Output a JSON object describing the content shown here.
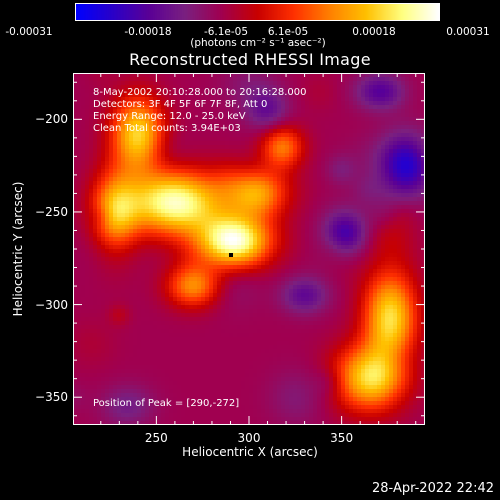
{
  "colorbar": {
    "ticks": [
      "-0.00031",
      "-0.00018",
      "-6.1e-05",
      "6.1e-05",
      "0.00018",
      "0.00031"
    ],
    "units": "(photons cm⁻² s⁻¹ asec⁻²)",
    "colors": [
      "#0000ff",
      "#2a00c8",
      "#5a0096",
      "#7a2080",
      "#a00050",
      "#c80000",
      "#ff3000",
      "#ff8000",
      "#ffc000",
      "#ffff80",
      "#ffffff"
    ]
  },
  "chart_data": {
    "type": "heatmap",
    "title": "Reconstructed RHESSI Image",
    "xlabel": "Heliocentric X (arcsec)",
    "ylabel": "Heliocentric Y (arcsec)",
    "xlim": [
      205,
      395
    ],
    "ylim": [
      -365,
      -175
    ],
    "xticks": [
      250,
      300,
      350
    ],
    "yticks": [
      -200,
      -250,
      -300,
      -350
    ],
    "value_range": [
      -0.00031,
      0.00031
    ],
    "peak": {
      "x": 290,
      "y": -272
    },
    "bright_sources": [
      {
        "x": 260,
        "y": -245,
        "intensity": 0.95,
        "sx": 18,
        "sy": 12
      },
      {
        "x": 292,
        "y": -266,
        "intensity": 1.0,
        "sx": 14,
        "sy": 10
      },
      {
        "x": 240,
        "y": -208,
        "intensity": 0.75,
        "sx": 10,
        "sy": 14
      },
      {
        "x": 228,
        "y": -252,
        "intensity": 0.65,
        "sx": 9,
        "sy": 16
      },
      {
        "x": 305,
        "y": -240,
        "intensity": 0.6,
        "sx": 12,
        "sy": 9
      },
      {
        "x": 376,
        "y": -308,
        "intensity": 0.75,
        "sx": 10,
        "sy": 20
      },
      {
        "x": 360,
        "y": -340,
        "intensity": 0.65,
        "sx": 12,
        "sy": 12
      },
      {
        "x": 270,
        "y": -290,
        "intensity": 0.55,
        "sx": 10,
        "sy": 8
      },
      {
        "x": 318,
        "y": -215,
        "intensity": 0.5,
        "sx": 8,
        "sy": 8
      }
    ],
    "dark_sources": [
      {
        "x": 385,
        "y": -225,
        "intensity": 0.85,
        "sx": 10,
        "sy": 12
      },
      {
        "x": 352,
        "y": -262,
        "intensity": 0.6,
        "sx": 8,
        "sy": 8
      },
      {
        "x": 330,
        "y": -295,
        "intensity": 0.5,
        "sx": 9,
        "sy": 7
      },
      {
        "x": 310,
        "y": -195,
        "intensity": 0.45,
        "sx": 8,
        "sy": 8
      },
      {
        "x": 235,
        "y": -355,
        "intensity": 0.35,
        "sx": 10,
        "sy": 8
      },
      {
        "x": 370,
        "y": -185,
        "intensity": 0.55,
        "sx": 9,
        "sy": 7
      }
    ]
  },
  "annotations": {
    "time_range": "8-May-2002 20:10:28.000 to 20:16:28.000",
    "detectors": "Detectors: 3F 4F 5F 6F 7F 8F, Att 0",
    "energy_range": "Energy Range: 12.0 - 25.0 keV",
    "clean_counts": "Clean     Total counts: 3.94E+03",
    "peak_position": "Position of Peak = [290,-272]"
  },
  "timestamp": "28-Apr-2022 22:42"
}
